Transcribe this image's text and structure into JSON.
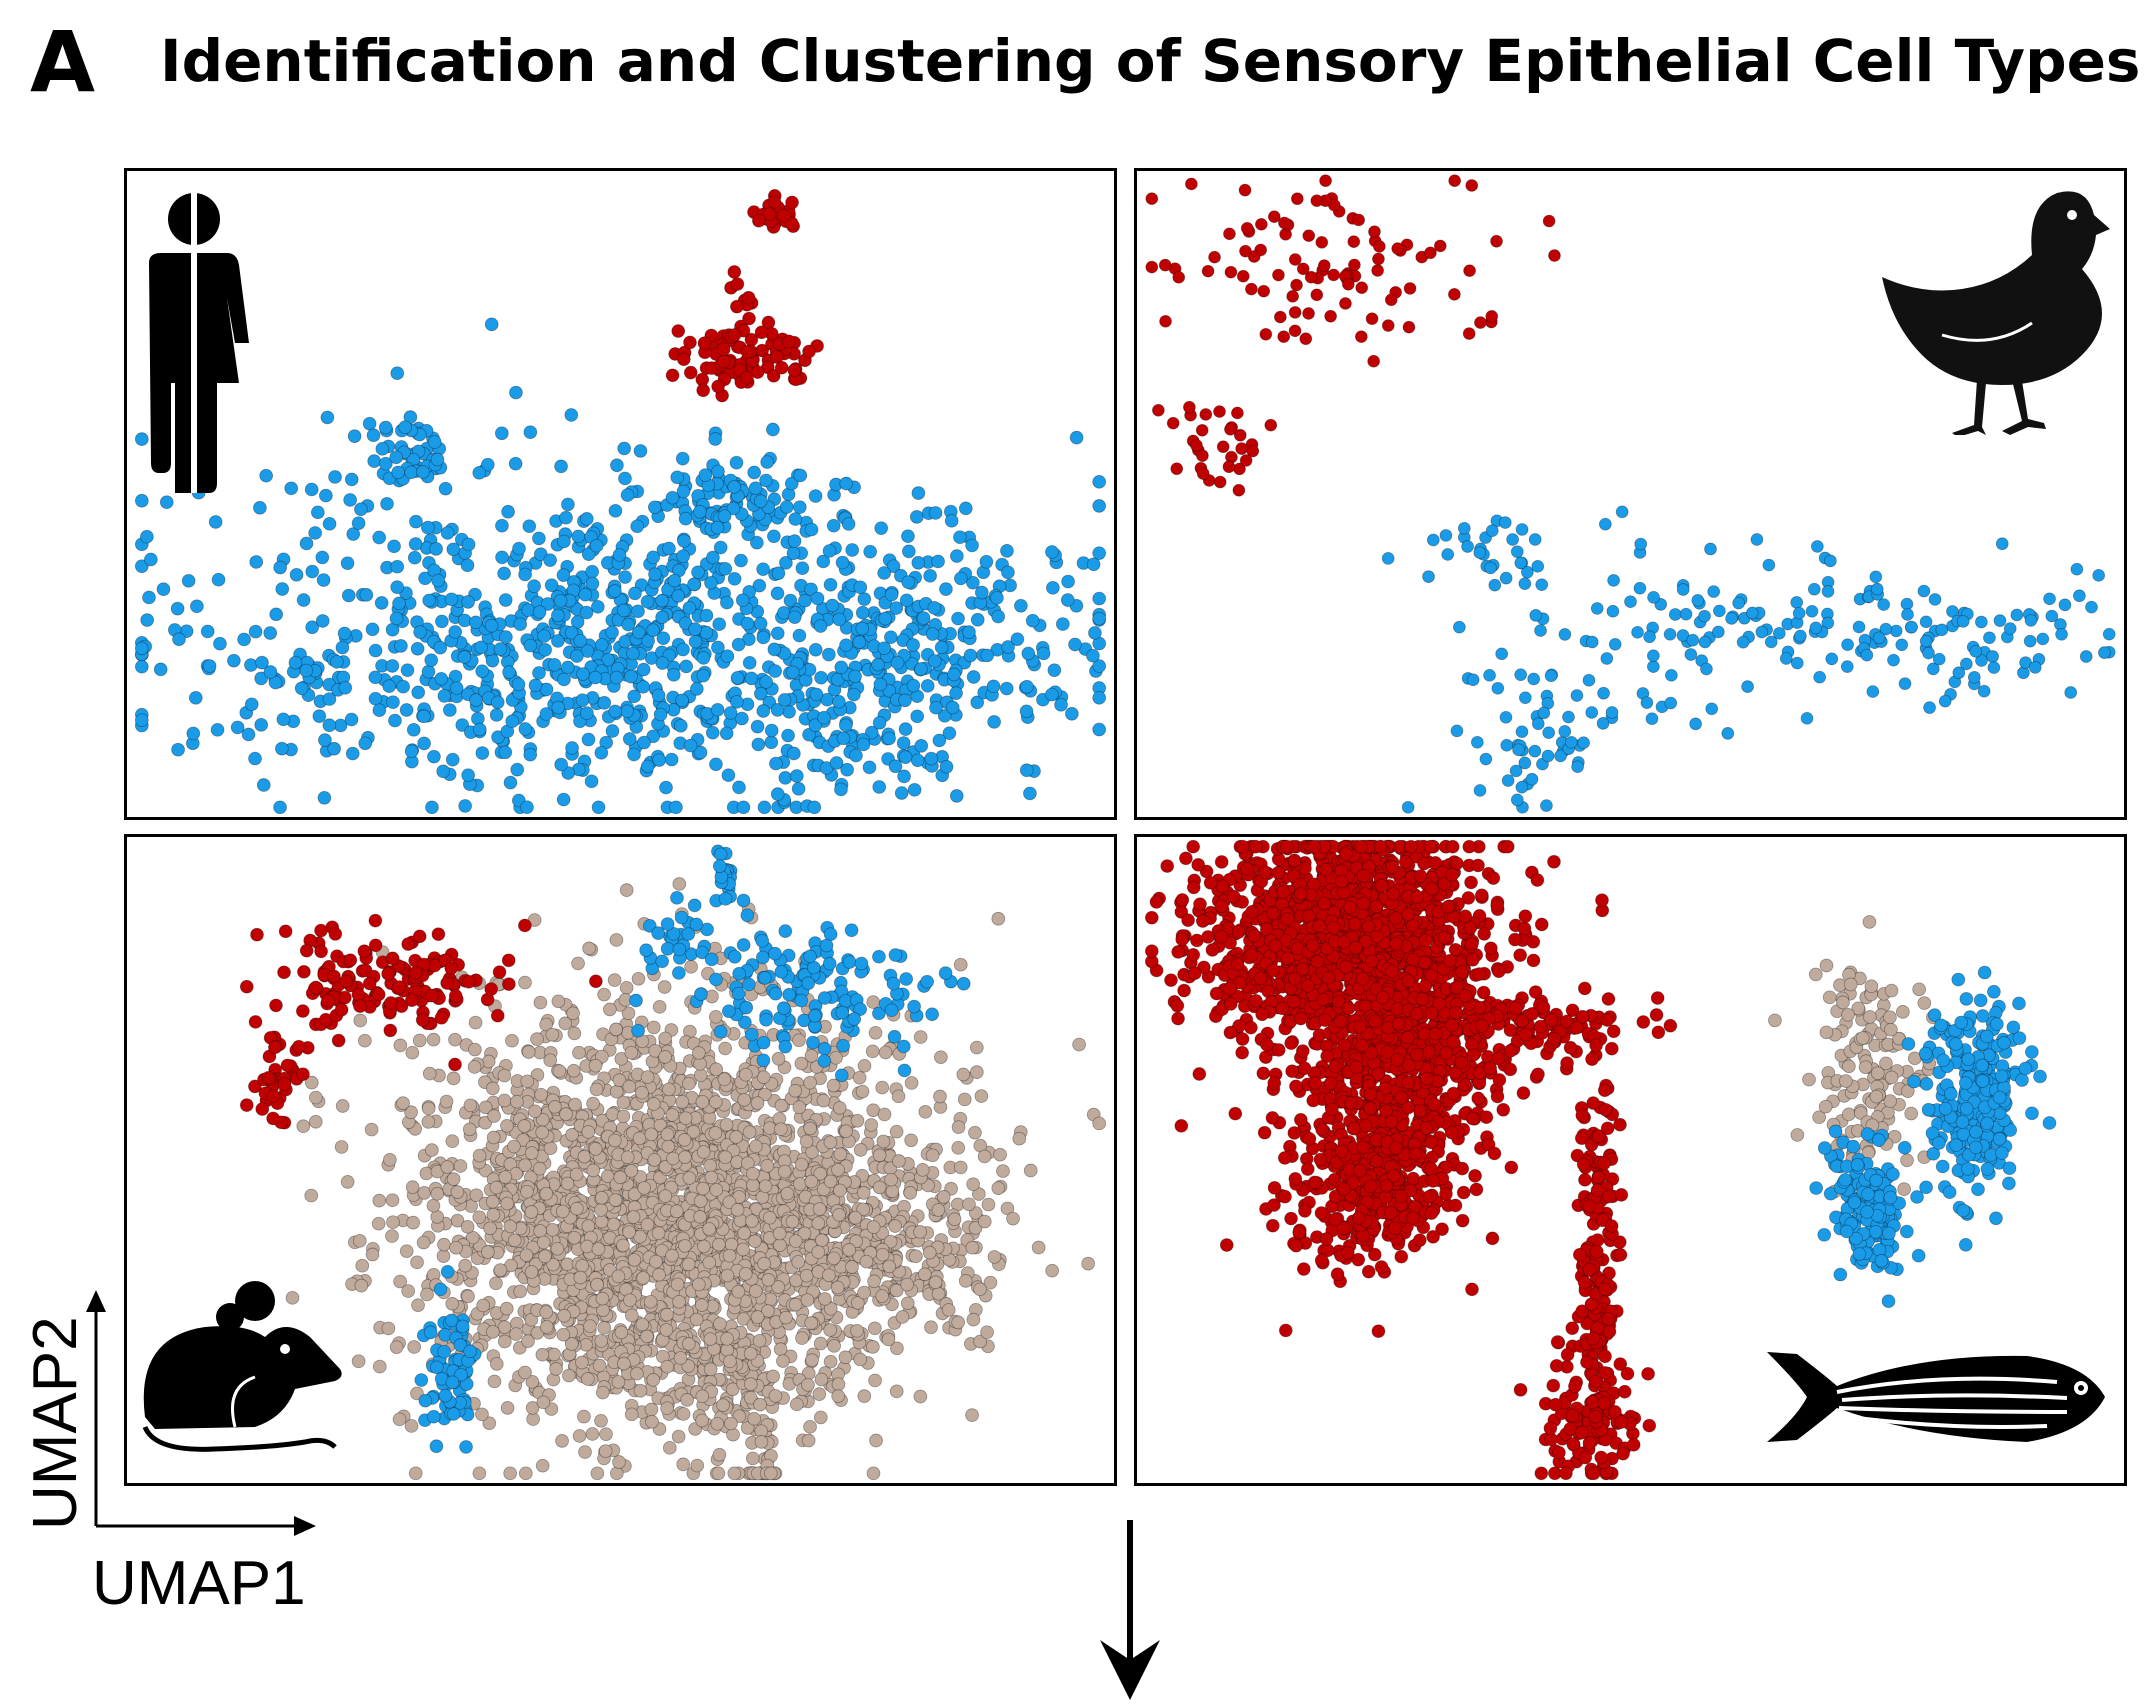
{
  "figure": {
    "panel_letter": "A",
    "title": "Identification and Clustering of Sensory Epithelial Cell Types",
    "axis_key": {
      "x_label": "UMAP1",
      "y_label": "UMAP2"
    }
  },
  "colors": {
    "red_cluster": "#c00000",
    "blue_cluster": "#1a9be8",
    "tan_cluster": "#bfaa9c",
    "outline": "#000000"
  },
  "panels": [
    {
      "id": "human",
      "icon": "human-icon"
    },
    {
      "id": "chicken",
      "icon": "chick-icon"
    },
    {
      "id": "mouse",
      "icon": "mouse-icon"
    },
    {
      "id": "zebrafish",
      "icon": "zebrafish-icon"
    }
  ],
  "chart_data": [
    {
      "type": "scatter",
      "species": "human",
      "xlabel": "UMAP1",
      "ylabel": "UMAP2",
      "series": [
        {
          "color": "red",
          "clusters": [
            {
              "cx": 0.66,
              "cy": 0.07,
              "sx": 0.012,
              "sy": 0.012,
              "n": 25
            },
            {
              "cx": 0.625,
              "cy": 0.19,
              "sx": 0.008,
              "sy": 0.025,
              "n": 10
            },
            {
              "cx": 0.625,
              "cy": 0.285,
              "sx": 0.035,
              "sy": 0.025,
              "n": 80
            }
          ]
        },
        {
          "color": "blue",
          "clusters": [
            {
              "cx": 0.285,
              "cy": 0.44,
              "sx": 0.025,
              "sy": 0.035,
              "n": 45
            },
            {
              "cx": 0.49,
              "cy": 0.72,
              "sx": 0.21,
              "sy": 0.12,
              "n": 950
            },
            {
              "cx": 0.82,
              "cy": 0.72,
              "sx": 0.08,
              "sy": 0.08,
              "n": 150
            },
            {
              "cx": 0.61,
              "cy": 0.5,
              "sx": 0.04,
              "sy": 0.04,
              "n": 80
            },
            {
              "cx": 0.72,
              "cy": 0.88,
              "sx": 0.05,
              "sy": 0.05,
              "n": 60
            },
            {
              "cx": 0.19,
              "cy": 0.79,
              "sx": 0.04,
              "sy": 0.02,
              "n": 30
            }
          ]
        }
      ]
    },
    {
      "type": "scatter",
      "species": "chicken",
      "xlabel": "UMAP1",
      "ylabel": "UMAP2",
      "series": [
        {
          "color": "red",
          "clusters": [
            {
              "cx": 0.18,
              "cy": 0.15,
              "sx": 0.085,
              "sy": 0.07,
              "n": 95
            },
            {
              "cx": 0.07,
              "cy": 0.41,
              "sx": 0.025,
              "sy": 0.04,
              "n": 30
            }
          ]
        },
        {
          "color": "blue",
          "clusters": [
            {
              "cx": 0.36,
              "cy": 0.58,
              "sx": 0.025,
              "sy": 0.03,
              "n": 25
            },
            {
              "cx": 0.52,
              "cy": 0.72,
              "sx": 0.08,
              "sy": 0.08,
              "n": 80
            },
            {
              "cx": 0.72,
              "cy": 0.7,
              "sx": 0.06,
              "sy": 0.05,
              "n": 45
            },
            {
              "cx": 0.85,
              "cy": 0.73,
              "sx": 0.09,
              "sy": 0.06,
              "n": 75
            },
            {
              "cx": 0.41,
              "cy": 0.88,
              "sx": 0.04,
              "sy": 0.06,
              "n": 50
            }
          ]
        }
      ]
    },
    {
      "type": "scatter",
      "species": "mouse",
      "xlabel": "UMAP1",
      "ylabel": "UMAP2",
      "series": [
        {
          "color": "tan",
          "clusters": [
            {
              "cx": 0.55,
              "cy": 0.58,
              "sx": 0.13,
              "sy": 0.15,
              "n": 2600
            },
            {
              "cx": 0.61,
              "cy": 0.83,
              "sx": 0.06,
              "sy": 0.06,
              "n": 150
            },
            {
              "cx": 0.76,
              "cy": 0.64,
              "sx": 0.06,
              "sy": 0.06,
              "n": 200
            },
            {
              "cx": 0.645,
              "cy": 0.98,
              "sx": 0.01,
              "sy": 0.035,
              "n": 25
            }
          ]
        },
        {
          "color": "red",
          "clusters": [
            {
              "cx": 0.26,
              "cy": 0.22,
              "sx": 0.06,
              "sy": 0.04,
              "n": 150
            },
            {
              "cx": 0.155,
              "cy": 0.37,
              "sx": 0.015,
              "sy": 0.03,
              "n": 35
            }
          ]
        },
        {
          "color": "blue",
          "clusters": [
            {
              "cx": 0.61,
              "cy": 0.06,
              "sx": 0.01,
              "sy": 0.025,
              "n": 20
            },
            {
              "cx": 0.555,
              "cy": 0.16,
              "sx": 0.015,
              "sy": 0.03,
              "n": 25
            },
            {
              "cx": 0.7,
              "cy": 0.24,
              "sx": 0.06,
              "sy": 0.05,
              "n": 140
            },
            {
              "cx": 0.33,
              "cy": 0.82,
              "sx": 0.015,
              "sy": 0.05,
              "n": 70
            }
          ]
        }
      ]
    },
    {
      "type": "scatter",
      "species": "zebrafish",
      "xlabel": "UMAP1",
      "ylabel": "UMAP2",
      "series": [
        {
          "color": "tan",
          "clusters": [
            {
              "cx": 0.74,
              "cy": 0.36,
              "sx": 0.03,
              "sy": 0.08,
              "n": 140
            }
          ]
        },
        {
          "color": "red",
          "clusters": [
            {
              "cx": 0.21,
              "cy": 0.16,
              "sx": 0.07,
              "sy": 0.09,
              "n": 1400
            },
            {
              "cx": 0.26,
              "cy": 0.4,
              "sx": 0.05,
              "sy": 0.11,
              "n": 500
            },
            {
              "cx": 0.23,
              "cy": 0.55,
              "sx": 0.04,
              "sy": 0.06,
              "n": 250
            },
            {
              "cx": 0.36,
              "cy": 0.3,
              "sx": 0.07,
              "sy": 0.03,
              "n": 200
            },
            {
              "cx": 0.465,
              "cy": 0.66,
              "sx": 0.01,
              "sy": 0.18,
              "n": 180
            },
            {
              "cx": 0.46,
              "cy": 0.9,
              "sx": 0.025,
              "sy": 0.05,
              "n": 100
            }
          ]
        },
        {
          "color": "blue",
          "clusters": [
            {
              "cx": 0.85,
              "cy": 0.4,
              "sx": 0.025,
              "sy": 0.07,
              "n": 260
            },
            {
              "cx": 0.73,
              "cy": 0.55,
              "sx": 0.015,
              "sy": 0.04,
              "n": 50
            },
            {
              "cx": 0.745,
              "cy": 0.58,
              "sx": 0.02,
              "sy": 0.05,
              "n": 100
            }
          ]
        }
      ]
    }
  ]
}
